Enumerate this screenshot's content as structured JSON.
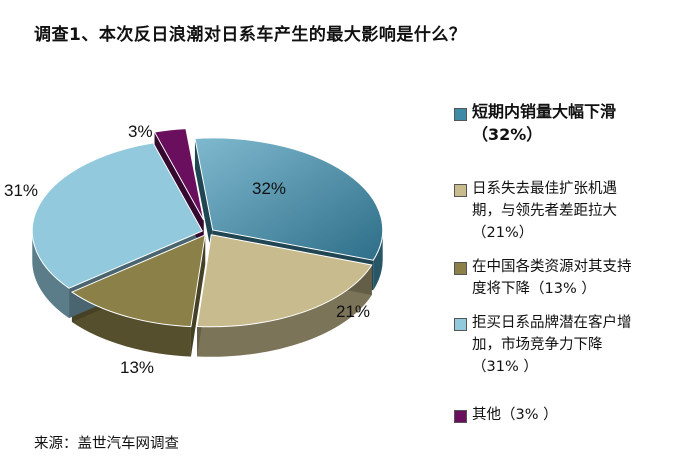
{
  "title": "调查1、本次反日浪潮对日系车产生的最大影响是什么？",
  "source": "来源：盖世汽车网调查",
  "chart_data": {
    "type": "pie",
    "title": "调查1、本次反日浪潮对日系车产生的最大影响是什么？",
    "categories": [
      "短期内销量大幅下滑（32%）",
      "日系失去最佳扩张机遇期，与领先者差距拉大（21%）",
      "在中国各类资源对其支持度将下降（13% ）",
      "拒买日系品牌潜在客户增加，市场竞争力下降（31% ）",
      "其他（3% ）"
    ],
    "values": [
      32,
      21,
      13,
      31,
      3
    ],
    "slice_labels": [
      "32%",
      "21%",
      "13%",
      "31%",
      "3%"
    ],
    "colors": [
      "#3f8ba6",
      "#c8bb8e",
      "#8b8048",
      "#93c9dd",
      "#6a0f5e"
    ],
    "legend_position": "right",
    "three_d": true
  },
  "legend": [
    {
      "lines": [
        "短期内销量大幅下滑",
        "（32%）"
      ],
      "color": "#3f8ba6"
    },
    {
      "lines": [
        "日系失去最佳扩张机遇",
        "期，与领先者差距拉大",
        "（21%）"
      ],
      "color": "#c8bb8e"
    },
    {
      "lines": [
        "在中国各类资源对其支持",
        "度将下降（13% ）"
      ],
      "color": "#8b8048"
    },
    {
      "lines": [
        "拒买日系品牌潜在客户增",
        "加，市场竞争力下降",
        "（31% ）"
      ],
      "color": "#93c9dd"
    },
    {
      "lines": [
        "其他（3% ）"
      ],
      "color": "#6a0f5e"
    }
  ]
}
